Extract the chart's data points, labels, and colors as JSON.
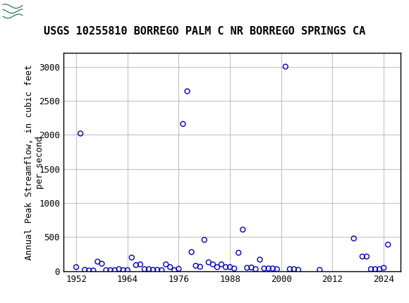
{
  "title": "USGS 10255810 BORREGO PALM C NR BORREGO SPRINGS CA",
  "ylabel_line1": "Annual Peak Streamflow, in cubic feet",
  "ylabel_line2": "per second",
  "xlim": [
    1949,
    2028
  ],
  "ylim": [
    0,
    3200
  ],
  "xticks": [
    1952,
    1964,
    1976,
    1988,
    2000,
    2012,
    2024
  ],
  "yticks": [
    0,
    500,
    1000,
    1500,
    2000,
    2500,
    3000
  ],
  "header_color": "#1b6b3a",
  "plot_bg": "#ffffff",
  "fig_bg": "#ffffff",
  "marker_color": "#0000cc",
  "marker_facecolor": "none",
  "marker_size": 5,
  "marker_linewidth": 1.0,
  "grid_color": "#bbbbbb",
  "title_fontsize": 11,
  "tick_fontsize": 9,
  "ylabel_fontsize": 9,
  "data": [
    [
      1952,
      60
    ],
    [
      1953,
      2020
    ],
    [
      1954,
      20
    ],
    [
      1955,
      10
    ],
    [
      1956,
      10
    ],
    [
      1957,
      140
    ],
    [
      1958,
      110
    ],
    [
      1959,
      15
    ],
    [
      1960,
      15
    ],
    [
      1961,
      15
    ],
    [
      1962,
      30
    ],
    [
      1963,
      15
    ],
    [
      1964,
      15
    ],
    [
      1965,
      200
    ],
    [
      1966,
      90
    ],
    [
      1967,
      100
    ],
    [
      1968,
      30
    ],
    [
      1969,
      30
    ],
    [
      1970,
      20
    ],
    [
      1971,
      20
    ],
    [
      1972,
      15
    ],
    [
      1973,
      100
    ],
    [
      1974,
      60
    ],
    [
      1975,
      15
    ],
    [
      1976,
      35
    ],
    [
      1977,
      2160
    ],
    [
      1978,
      2640
    ],
    [
      1979,
      280
    ],
    [
      1980,
      80
    ],
    [
      1981,
      65
    ],
    [
      1982,
      460
    ],
    [
      1983,
      130
    ],
    [
      1984,
      100
    ],
    [
      1985,
      60
    ],
    [
      1986,
      100
    ],
    [
      1987,
      60
    ],
    [
      1988,
      60
    ],
    [
      1989,
      40
    ],
    [
      1990,
      270
    ],
    [
      1991,
      610
    ],
    [
      1992,
      50
    ],
    [
      1993,
      55
    ],
    [
      1994,
      30
    ],
    [
      1995,
      170
    ],
    [
      1996,
      40
    ],
    [
      1997,
      40
    ],
    [
      1998,
      40
    ],
    [
      1999,
      30
    ],
    [
      2001,
      3000
    ],
    [
      2002,
      30
    ],
    [
      2003,
      30
    ],
    [
      2004,
      20
    ],
    [
      2009,
      20
    ],
    [
      2017,
      480
    ],
    [
      2019,
      215
    ],
    [
      2020,
      215
    ],
    [
      2021,
      30
    ],
    [
      2022,
      30
    ],
    [
      2023,
      30
    ],
    [
      2024,
      50
    ],
    [
      2025,
      390
    ]
  ]
}
